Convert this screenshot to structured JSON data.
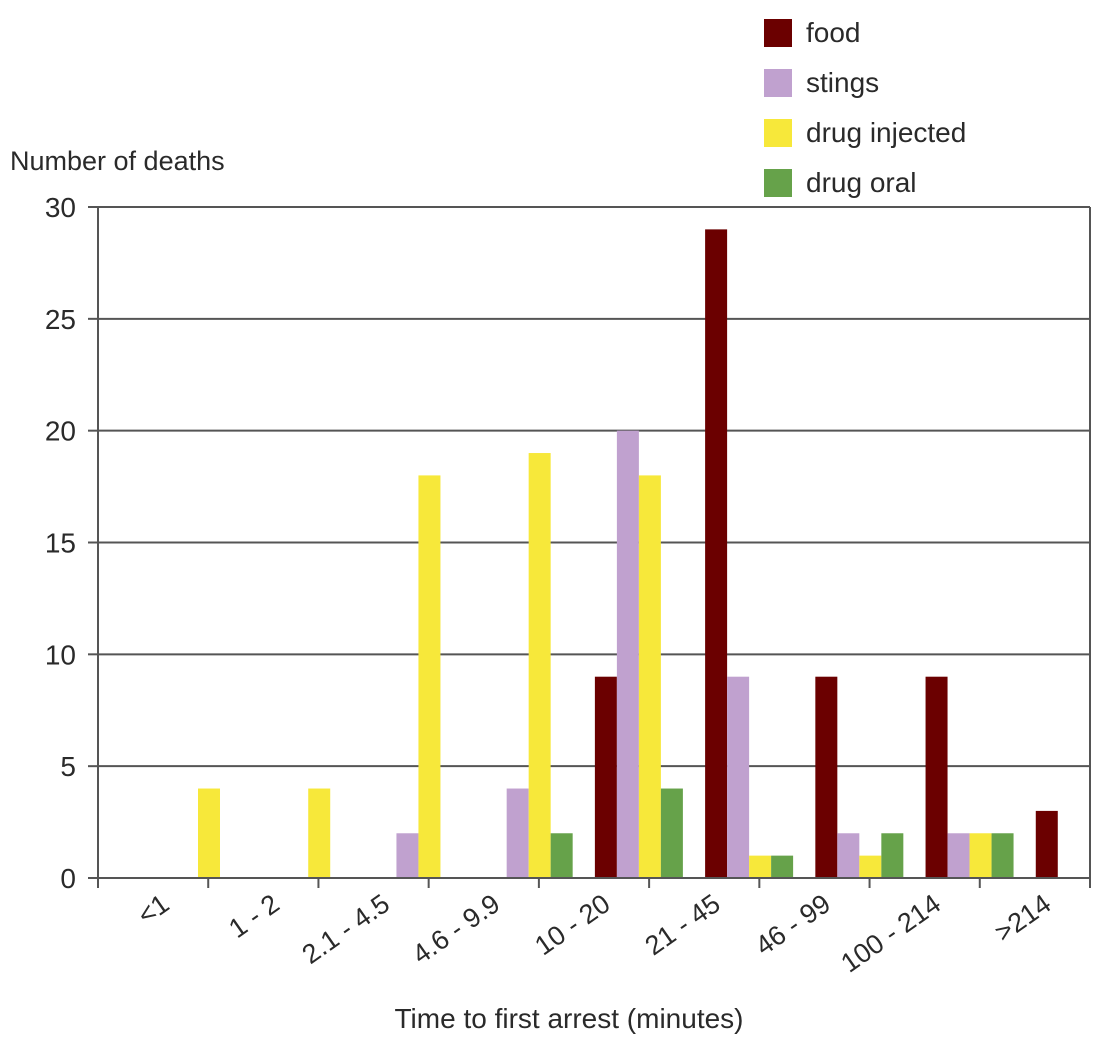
{
  "chart_data": {
    "type": "bar",
    "title": "",
    "ylabel": "Number of deaths",
    "xlabel": "Time to first arrest (minutes)",
    "ylim": [
      0,
      30
    ],
    "yticks": [
      0,
      5,
      10,
      15,
      20,
      25,
      30
    ],
    "grid": "horizontal",
    "legend_position": "top-right",
    "categories": [
      "<1",
      "1 - 2",
      "2.1 - 4.5",
      "4.6 - 9.9",
      "10 - 20",
      "21 - 45",
      "46 - 99",
      "100 - 214",
      ">214"
    ],
    "series": [
      {
        "name": "food",
        "color": "#6b0000",
        "values": [
          0,
          0,
          0,
          0,
          9,
          29,
          9,
          9,
          3
        ]
      },
      {
        "name": "stings",
        "color": "#c0a1cf",
        "values": [
          0,
          0,
          2,
          4,
          20,
          9,
          2,
          2,
          0
        ]
      },
      {
        "name": "drug injected",
        "color": "#f7e83a",
        "values": [
          4,
          4,
          18,
          19,
          18,
          1,
          1,
          2,
          0
        ]
      },
      {
        "name": "drug oral",
        "color": "#66a24a",
        "values": [
          0,
          0,
          0,
          2,
          4,
          1,
          2,
          2,
          2
        ]
      }
    ]
  }
}
